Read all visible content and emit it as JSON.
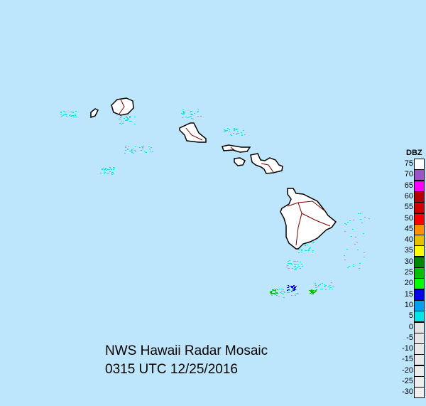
{
  "title": "NWS Hawaii Radar Mosaic",
  "timestamp": "0315 UTC 12/25/2016",
  "colors": {
    "ocean": "#bde6fc",
    "land": "#ffffff",
    "coast": "#000000",
    "boundary": "#7a0000"
  },
  "legend": {
    "title": "DBZ",
    "items": [
      {
        "value": "75",
        "color": "#ffffff"
      },
      {
        "value": "70",
        "color": "#9955c8"
      },
      {
        "value": "65",
        "color": "#ff00ff"
      },
      {
        "value": "60",
        "color": "#b40000"
      },
      {
        "value": "55",
        "color": "#d40000"
      },
      {
        "value": "50",
        "color": "#ff0000"
      },
      {
        "value": "45",
        "color": "#ff9000"
      },
      {
        "value": "40",
        "color": "#e7c000"
      },
      {
        "value": "35",
        "color": "#ffff00"
      },
      {
        "value": "30",
        "color": "#008800"
      },
      {
        "value": "25",
        "color": "#00c000"
      },
      {
        "value": "20",
        "color": "#00ff00"
      },
      {
        "value": "15",
        "color": "#0000ee"
      },
      {
        "value": "10",
        "color": "#00a0f0"
      },
      {
        "value": "5",
        "color": "#00e6e6"
      },
      {
        "value": "0",
        "color": "#e4e4e4"
      },
      {
        "value": "-5",
        "color": "#e6e6e6"
      },
      {
        "value": "-10",
        "color": "#e8e8e8"
      },
      {
        "value": "-15",
        "color": "#eaeaea"
      },
      {
        "value": "-20",
        "color": "#ececec"
      },
      {
        "value": "-25",
        "color": "#eeeeee"
      },
      {
        "value": "-30",
        "color": "#f0f0f0"
      }
    ]
  }
}
